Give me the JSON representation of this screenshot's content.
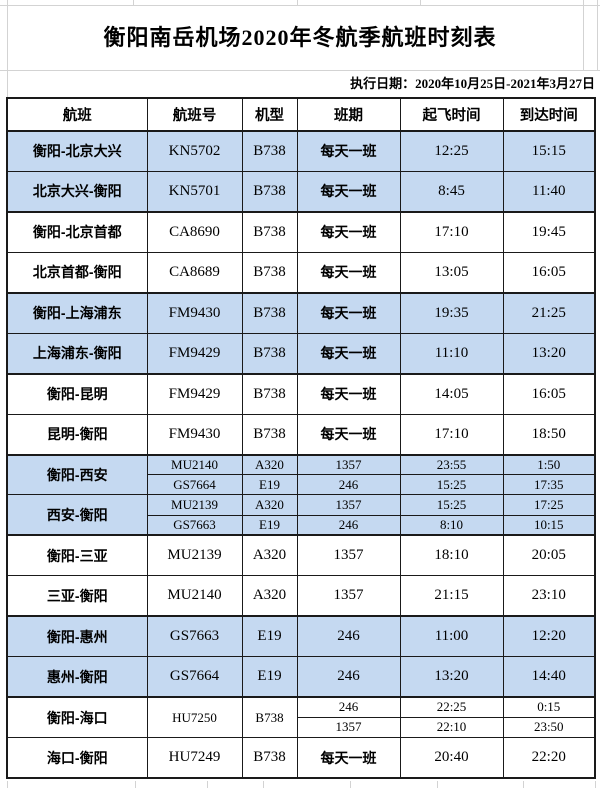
{
  "title": "衡阳南岳机场2020年冬航季航班时刻表",
  "subtitle": "执行日期：2020年10月25日-2021年3月27日",
  "colors": {
    "row_shaded": "#c5d9f1",
    "row_plain": "#ffffff",
    "border": "#1a1a1a",
    "gridline": "#d3d3d3",
    "text": "#000000"
  },
  "table": {
    "columns": [
      "航班",
      "航班号",
      "机型",
      "班期",
      "起飞时间",
      "到达时间"
    ],
    "rows": [
      {
        "route": "衡阳-北京大兴",
        "shaded": true,
        "flights": [
          {
            "no": "KN5702",
            "ac": "B738",
            "days": "每天一班",
            "dep": "12:25",
            "arr": "15:15"
          }
        ]
      },
      {
        "route": "北京大兴-衡阳",
        "shaded": true,
        "flights": [
          {
            "no": "KN5701",
            "ac": "B738",
            "days": "每天一班",
            "dep": "8:45",
            "arr": "11:40"
          }
        ]
      },
      {
        "route": "衡阳-北京首都",
        "shaded": false,
        "flights": [
          {
            "no": "CA8690",
            "ac": "B738",
            "days": "每天一班",
            "dep": "17:10",
            "arr": "19:45"
          }
        ]
      },
      {
        "route": "北京首都-衡阳",
        "shaded": false,
        "flights": [
          {
            "no": "CA8689",
            "ac": "B738",
            "days": "每天一班",
            "dep": "13:05",
            "arr": "16:05"
          }
        ]
      },
      {
        "route": "衡阳-上海浦东",
        "shaded": true,
        "flights": [
          {
            "no": "FM9430",
            "ac": "B738",
            "days": "每天一班",
            "dep": "19:35",
            "arr": "21:25"
          }
        ]
      },
      {
        "route": "上海浦东-衡阳",
        "shaded": true,
        "flights": [
          {
            "no": "FM9429",
            "ac": "B738",
            "days": "每天一班",
            "dep": "11:10",
            "arr": "13:20"
          }
        ]
      },
      {
        "route": "衡阳-昆明",
        "shaded": false,
        "flights": [
          {
            "no": "FM9429",
            "ac": "B738",
            "days": "每天一班",
            "dep": "14:05",
            "arr": "16:05"
          }
        ]
      },
      {
        "route": "昆明-衡阳",
        "shaded": false,
        "flights": [
          {
            "no": "FM9430",
            "ac": "B738",
            "days": "每天一班",
            "dep": "17:10",
            "arr": "18:50"
          }
        ]
      },
      {
        "route": "衡阳-西安",
        "shaded": true,
        "flights": [
          {
            "no": "MU2140",
            "ac": "A320",
            "days": "1357",
            "dep": "23:55",
            "arr": "1:50"
          },
          {
            "no": "GS7664",
            "ac": "E19",
            "days": "246",
            "dep": "15:25",
            "arr": "17:35"
          }
        ]
      },
      {
        "route": "西安-衡阳",
        "shaded": true,
        "flights": [
          {
            "no": "MU2139",
            "ac": "A320",
            "days": "1357",
            "dep": "15:25",
            "arr": "17:25"
          },
          {
            "no": "GS7663",
            "ac": "E19",
            "days": "246",
            "dep": "8:10",
            "arr": "10:15"
          }
        ]
      },
      {
        "route": "衡阳-三亚",
        "shaded": false,
        "flights": [
          {
            "no": "MU2139",
            "ac": "A320",
            "days": "1357",
            "dep": "18:10",
            "arr": "20:05"
          }
        ]
      },
      {
        "route": "三亚-衡阳",
        "shaded": false,
        "flights": [
          {
            "no": "MU2140",
            "ac": "A320",
            "days": "1357",
            "dep": "21:15",
            "arr": "23:10"
          }
        ]
      },
      {
        "route": "衡阳-惠州",
        "shaded": true,
        "flights": [
          {
            "no": "GS7663",
            "ac": "E19",
            "days": "246",
            "dep": "11:00",
            "arr": "12:20"
          }
        ]
      },
      {
        "route": "惠州-衡阳",
        "shaded": true,
        "flights": [
          {
            "no": "GS7664",
            "ac": "E19",
            "days": "246",
            "dep": "13:20",
            "arr": "14:40"
          }
        ]
      },
      {
        "route": "衡阳-海口",
        "shaded": false,
        "merge_flight_info": true,
        "flights": [
          {
            "no": "HU7250",
            "ac": "B738",
            "days": "246",
            "dep": "22:25",
            "arr": "0:15"
          },
          {
            "days": "1357",
            "dep": "22:10",
            "arr": "23:50"
          }
        ]
      },
      {
        "route": "海口-衡阳",
        "shaded": false,
        "flights": [
          {
            "no": "HU7249",
            "ac": "B738",
            "days": "每天一班",
            "dep": "20:40",
            "arr": "22:20"
          }
        ]
      }
    ]
  }
}
